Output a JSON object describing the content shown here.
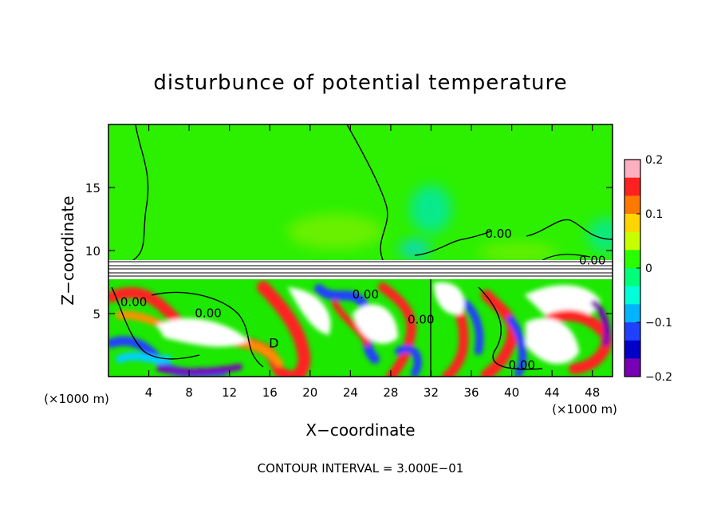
{
  "chart_data": {
    "type": "heatmap",
    "title": "disturbunce of potential temperature",
    "xlabel": "X−coordinate",
    "ylabel": "Z−coordinate",
    "x_unit_left": "(×1000 m)",
    "x_unit_right": "(×1000 m)",
    "xlim": [
      0,
      50
    ],
    "ylim": [
      0,
      20
    ],
    "x_ticks": [
      4,
      8,
      12,
      16,
      20,
      24,
      28,
      32,
      36,
      40,
      44,
      48
    ],
    "y_ticks": [
      5,
      10,
      15
    ],
    "colorbar": {
      "min": -0.2,
      "max": 0.2,
      "ticks": [
        0.2,
        0.1,
        0,
        -0.1,
        -0.2
      ],
      "tick_labels": [
        "0.2",
        "0.1",
        "0",
        "−0.1",
        "−0.2"
      ],
      "colors": [
        "#ffb0c0",
        "#ff2020",
        "#ff7800",
        "#ffd400",
        "#c8ff00",
        "#28ff00",
        "#00ff78",
        "#00ffd8",
        "#00b4ff",
        "#2040ff",
        "#0000c8",
        "#7800b4"
      ]
    },
    "contour_labels": [
      {
        "text": "0.00",
        "x": 38.7,
        "z": 11.0
      },
      {
        "text": "0.00",
        "x": 48.0,
        "z": 8.9
      },
      {
        "text": "0.00",
        "x": 2.5,
        "z": 5.6
      },
      {
        "text": "0.00",
        "x": 9.9,
        "z": 4.7
      },
      {
        "text": "0.00",
        "x": 25.5,
        "z": 6.2
      },
      {
        "text": "0.00",
        "x": 31.0,
        "z": 4.2
      },
      {
        "text": "0.00",
        "x": 41.0,
        "z": 0.6
      }
    ],
    "extra_labels": [
      {
        "text": "D",
        "x": 16.4,
        "z": 2.3
      }
    ],
    "regions": {
      "upper_layer": {
        "z_range": [
          9.2,
          20
        ],
        "value": 0
      },
      "inversion_band": {
        "z_range": [
          7.6,
          9.2
        ]
      },
      "lower_turbulent_layer": {
        "z_range": [
          0,
          7.6
        ],
        "value_range": [
          -0.2,
          0.2
        ]
      }
    }
  },
  "footer": {
    "contour_interval": "CONTOUR INTERVAL = 3.000E−01"
  }
}
